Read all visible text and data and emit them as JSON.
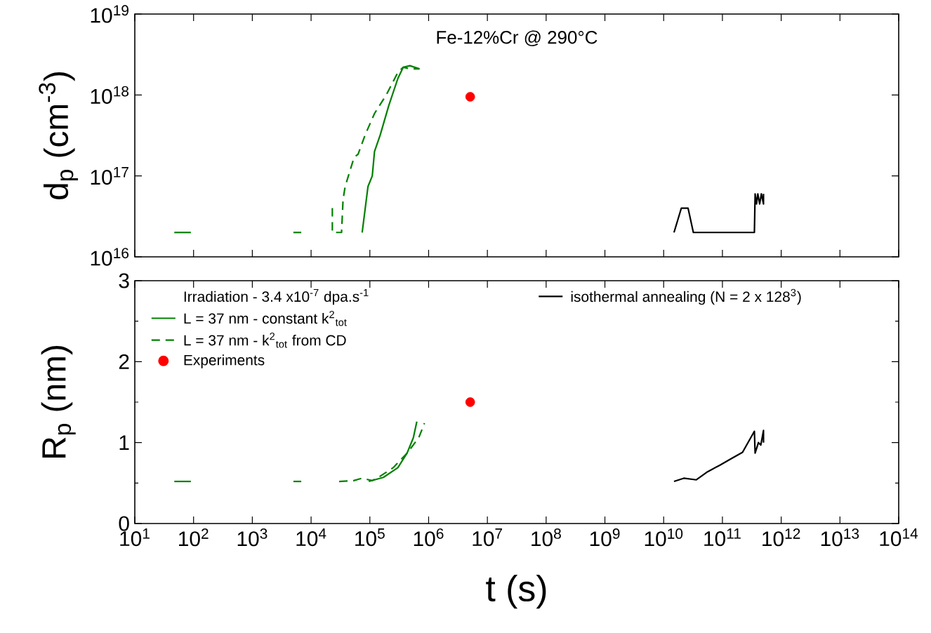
{
  "chart_data": [
    {
      "type": "line",
      "title": "Fe-12%Cr @ 290°C",
      "ylabel": "d$_{p}$ (cm$^{-3}$)",
      "log": "xy",
      "xlim": [
        10,
        100000000000000.0
      ],
      "ylim": [
        1e+16,
        1e+19
      ],
      "xticks": [
        {
          "value": 10,
          "label": null
        },
        {
          "value": 100,
          "label": null
        },
        {
          "value": 1000,
          "label": null
        },
        {
          "value": 10000.0,
          "label": null
        },
        {
          "value": 100000.0,
          "label": null
        },
        {
          "value": 1000000.0,
          "label": null
        },
        {
          "value": 10000000.0,
          "label": null
        },
        {
          "value": 100000000.0,
          "label": null
        },
        {
          "value": 1000000000.0,
          "label": null
        },
        {
          "value": 10000000000.0,
          "label": null
        },
        {
          "value": 100000000000.0,
          "label": null
        },
        {
          "value": 1000000000000.0,
          "label": null
        },
        {
          "value": 10000000000000.0,
          "label": null
        },
        {
          "value": 100000000000000.0,
          "label": null
        }
      ],
      "yticks": [
        {
          "value": 1e+16,
          "label": "10$^{16}$"
        },
        {
          "value": 1e+17,
          "label": "10$^{17}$"
        },
        {
          "value": 1e+18,
          "label": "10$^{18}$"
        },
        {
          "value": 1e+19,
          "label": "10$^{19}$"
        }
      ],
      "tick_labels": "y",
      "series": [
        {
          "color": "#008000",
          "line_style": "solid",
          "x": [
            74000,
            93000,
            110000,
            120000,
            150000,
            210000,
            300000,
            370000,
            480000,
            700000
          ],
          "values": [
            2e+16,
            7.4e+16,
            1e+17,
            2e+17,
            3.2e+17,
            7.4e+17,
            1.6e+18,
            2.2e+18,
            2.3e+18,
            2.1e+18
          ]
        },
        {
          "color": "#008000",
          "line_style": "dashed",
          "x": [
            23000,
            23000,
            33000,
            35000,
            38000,
            54000,
            63000,
            83000,
            120000,
            190000,
            300000,
            370000,
            480000,
            700000
          ],
          "values": [
            4e+16,
            2e+16,
            2e+16,
            5.1e+16,
            7.4e+16,
            1.7e+17,
            1.85e+17,
            3.2e+17,
            5.9e+17,
            1e+18,
            1.9e+18,
            2.2e+18,
            2.1e+18,
            2.1e+18
          ]
        },
        {
          "type": "scatter",
          "color": "#ff0000",
          "x": [
            5100000
          ],
          "values": [
            9.5e+17
          ]
        },
        {
          "color": "#000000",
          "line_style": "solid",
          "x": [
            15000000000.0,
            20000000000.0,
            26000000000.0,
            32000000000.0,
            350000000000.0,
            360000000000.0,
            380000000000.0,
            400000000000.0,
            430000000000.0,
            460000000000.0,
            500000000000.0,
            500000000000.0
          ],
          "values": [
            2e+16,
            4e+16,
            4e+16,
            2e+16,
            2e+16,
            6e+16,
            4.5e+16,
            6e+16,
            4.5e+16,
            6e+16,
            4.5e+16,
            6e+16
          ]
        },
        {
          "color": "#008000",
          "line_style": "solid",
          "x": [
            47,
            90
          ],
          "values": [
            2e+16,
            2e+16
          ]
        },
        {
          "color": "#008000",
          "line_style": "solid",
          "x": [
            5000,
            6800
          ],
          "values": [
            2e+16,
            2e+16
          ]
        }
      ]
    },
    {
      "type": "line",
      "xlabel": "t (s)",
      "ylabel": "R$_{p}$ (nm)",
      "log": "x",
      "xlim": [
        10,
        100000000000000.0
      ],
      "ylim": [
        0,
        3
      ],
      "xticks": [
        {
          "value": 10,
          "label": "10$^{1}$"
        },
        {
          "value": 100,
          "label": "10$^{2}$"
        },
        {
          "value": 1000,
          "label": "10$^{3}$"
        },
        {
          "value": 10000.0,
          "label": "10$^{4}$"
        },
        {
          "value": 100000.0,
          "label": "10$^{5}$"
        },
        {
          "value": 1000000.0,
          "label": "10$^{6}$"
        },
        {
          "value": 10000000.0,
          "label": "10$^{7}$"
        },
        {
          "value": 100000000.0,
          "label": "10$^{8}$"
        },
        {
          "value": 1000000000.0,
          "label": "10$^{9}$"
        },
        {
          "value": 10000000000.0,
          "label": "10$^{10}$"
        },
        {
          "value": 100000000000.0,
          "label": "10$^{11}$"
        },
        {
          "value": 1000000000000.0,
          "label": "10$^{12}$"
        },
        {
          "value": 10000000000000.0,
          "label": "10$^{13}$"
        },
        {
          "value": 100000000000000.0,
          "label": "10$^{14}$"
        }
      ],
      "yticks": [
        0,
        1,
        2,
        3
      ],
      "legend": "top",
      "legend_title": "Irradiation - 3.4 x10$^{-7}$ dpa.s$^{-1}$",
      "series": [
        {
          "name": "L = 37 nm - constant k$^{2}$$_{tot}$",
          "color": "#008000",
          "line_style": "solid",
          "x": [
            96000,
            170000,
            300000,
            430000,
            550000,
            630000
          ],
          "values": [
            0.52,
            0.57,
            0.69,
            0.87,
            1.06,
            1.26
          ]
        },
        {
          "name": "L = 37 nm - k$^{2}$$_{tot}$ from CD",
          "color": "#008000",
          "line_style": "dashed",
          "x": [
            30000,
            53000,
            74000,
            110000,
            140000,
            250000,
            430000,
            680000,
            850000
          ],
          "values": [
            0.52,
            0.53,
            0.56,
            0.53,
            0.57,
            0.69,
            0.87,
            1.06,
            1.24
          ]
        },
        {
          "name": "Experiments",
          "type": "scatter",
          "color": "#ff0000",
          "x": [
            5100000
          ],
          "values": [
            1.5
          ]
        },
        {
          "name": "isothermal annealing (N = 2 x 128$^{3}$)",
          "color": "#000000",
          "line_style": "solid",
          "x": [
            15000000000.0,
            22000000000.0,
            36000000000.0,
            56000000000.0,
            90000000000.0,
            140000000000.0,
            220000000000.0,
            350000000000.0,
            360000000000.0,
            410000000000.0,
            450000000000.0,
            500000000000.0,
            500000000000.0
          ],
          "values": [
            0.52,
            0.56,
            0.54,
            0.64,
            0.72,
            0.8,
            0.88,
            1.14,
            0.87,
            1.0,
            0.97,
            1.15,
            1.0
          ]
        },
        {
          "color": "#008000",
          "line_style": "solid",
          "x": [
            47,
            90
          ],
          "values": [
            0.52,
            0.52
          ]
        },
        {
          "color": "#008000",
          "line_style": "solid",
          "x": [
            5000,
            6800
          ],
          "values": [
            0.52,
            0.52
          ]
        }
      ]
    }
  ]
}
